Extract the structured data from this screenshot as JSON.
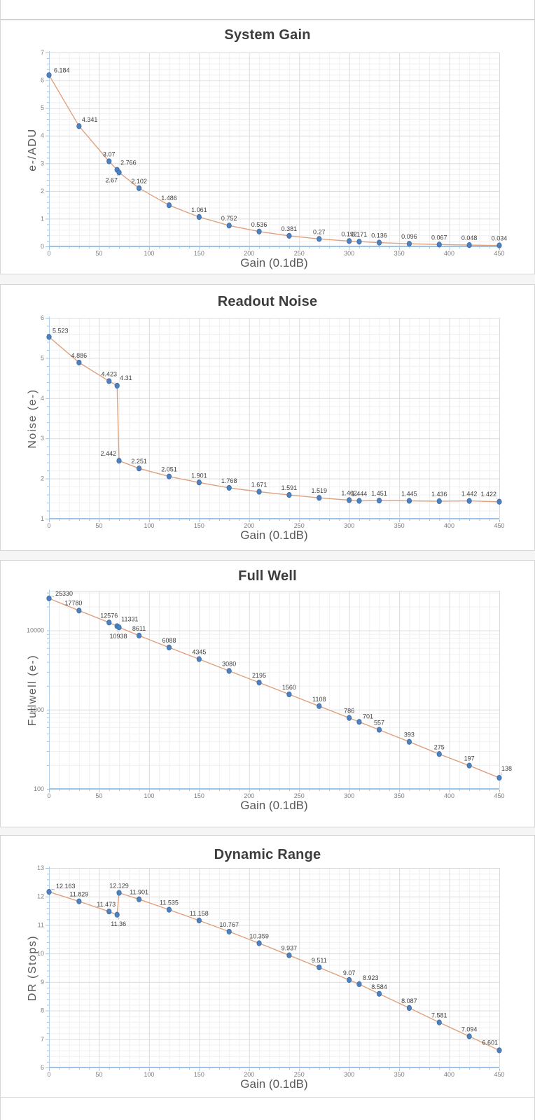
{
  "style": {
    "line_color": "#dfa17d",
    "marker_fill": "#4e81bd",
    "marker_stroke": "#3a6aa8",
    "axis_color": "#9dc3e6",
    "yaxis_line_color": "#b4cfe8",
    "grid_major_color": "#dcdcdc",
    "grid_minor_color": "#f0f0f0",
    "tick_label_color": "#7f7f7f",
    "data_label_color": "#3f3f3f"
  },
  "chart_data": [
    {
      "type": "line",
      "title": "System Gain",
      "xlabel": "Gain (0.1dB)",
      "ylabel": "e-/ADU",
      "legend": "none",
      "grid": "on",
      "x": [
        0,
        30,
        60,
        68,
        70,
        90,
        120,
        150,
        180,
        210,
        240,
        270,
        300,
        310,
        330,
        360,
        390,
        420,
        450
      ],
      "values": [
        6.184,
        4.341,
        3.07,
        2.766,
        2.67,
        2.102,
        1.486,
        1.061,
        0.752,
        0.536,
        0.381,
        0.27,
        0.192,
        0.171,
        0.136,
        0.096,
        0.067,
        0.048,
        0.034
      ],
      "x_axis": {
        "min": 0,
        "max": 450,
        "major": 50,
        "minor": 10
      },
      "y_axis": {
        "scale": "linear",
        "min": 0,
        "max": 7,
        "major": 1,
        "minor": 0.2
      }
    },
    {
      "type": "line",
      "title": "Readout Noise",
      "xlabel": "Gain (0.1dB)",
      "ylabel": "Noise (e-)",
      "legend": "none",
      "grid": "on",
      "x": [
        0,
        30,
        60,
        68,
        70,
        90,
        120,
        150,
        180,
        210,
        240,
        270,
        300,
        310,
        330,
        360,
        390,
        420,
        450
      ],
      "values": [
        5.523,
        4.886,
        4.423,
        4.31,
        2.442,
        2.251,
        2.051,
        1.901,
        1.768,
        1.671,
        1.591,
        1.519,
        1.462,
        1.444,
        1.451,
        1.445,
        1.436,
        1.442,
        1.422
      ],
      "x_axis": {
        "min": 0,
        "max": 450,
        "major": 50,
        "minor": 10
      },
      "y_axis": {
        "scale": "linear",
        "min": 1,
        "max": 6,
        "major": 1,
        "minor": 0.2
      }
    },
    {
      "type": "line",
      "title": "Full Well",
      "xlabel": "Gain (0.1dB)",
      "ylabel": "Fullwell (e-)",
      "legend": "none",
      "grid": "on",
      "x": [
        0,
        30,
        60,
        68,
        70,
        90,
        120,
        150,
        180,
        210,
        240,
        270,
        300,
        310,
        330,
        360,
        390,
        420,
        450
      ],
      "values": [
        25330,
        17780,
        12576,
        11331,
        10938,
        8611,
        6088,
        4345,
        3080,
        2195,
        1560,
        1108,
        786,
        701,
        557,
        393,
        275,
        197,
        138
      ],
      "x_axis": {
        "min": 0,
        "max": 450,
        "major": 50,
        "minor": 10
      },
      "y_axis": {
        "scale": "log",
        "min": 100,
        "max": 31623,
        "major_ticks": [
          100,
          1000,
          10000
        ]
      }
    },
    {
      "type": "line",
      "title": "Dynamic Range",
      "xlabel": "Gain (0.1dB)",
      "ylabel": "DR (Stops)",
      "legend": "none",
      "grid": "on",
      "x": [
        0,
        30,
        60,
        68,
        70,
        90,
        120,
        150,
        180,
        210,
        240,
        270,
        300,
        310,
        330,
        360,
        390,
        420,
        450
      ],
      "values": [
        12.163,
        11.829,
        11.473,
        11.36,
        12.129,
        11.901,
        11.535,
        11.158,
        10.767,
        10.359,
        9.937,
        9.511,
        9.07,
        8.923,
        8.584,
        8.087,
        7.581,
        7.094,
        6.601
      ],
      "x_axis": {
        "min": 0,
        "max": 450,
        "major": 50,
        "minor": 10
      },
      "y_axis": {
        "scale": "linear",
        "min": 6,
        "max": 13,
        "major": 1,
        "minor": 0.2
      }
    }
  ]
}
